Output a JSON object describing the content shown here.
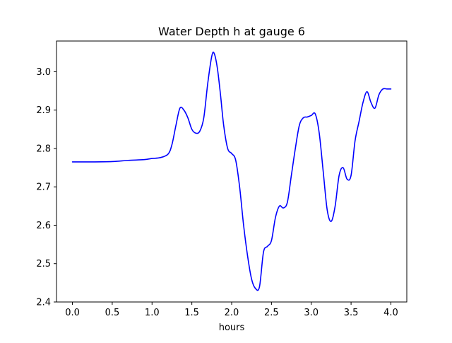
{
  "chart_data": {
    "type": "line",
    "title": "Water Depth h at gauge 6",
    "xlabel": "hours",
    "ylabel": "",
    "xlim": [
      -0.2,
      4.2
    ],
    "ylim": [
      2.4,
      3.08
    ],
    "xticks": [
      0.0,
      0.5,
      1.0,
      1.5,
      2.0,
      2.5,
      3.0,
      3.5,
      4.0
    ],
    "xtick_labels": [
      "0.0",
      "0.5",
      "1.0",
      "1.5",
      "2.0",
      "2.5",
      "3.0",
      "3.5",
      "4.0"
    ],
    "yticks": [
      2.4,
      2.5,
      2.6,
      2.7,
      2.8,
      2.9,
      3.0
    ],
    "ytick_labels": [
      "2.4",
      "2.5",
      "2.6",
      "2.7",
      "2.8",
      "2.9",
      "3.0"
    ],
    "grid": false,
    "colors": {
      "line": "#0000ff",
      "axes": "#000000",
      "background": "#ffffff"
    },
    "series": [
      {
        "x": [
          0.0,
          0.2,
          0.5,
          0.7,
          0.9,
          1.0,
          1.1,
          1.2,
          1.25,
          1.3,
          1.35,
          1.4,
          1.45,
          1.5,
          1.55,
          1.6,
          1.65,
          1.7,
          1.75,
          1.78,
          1.82,
          1.86,
          1.9,
          1.95,
          2.0,
          2.05,
          2.1,
          2.15,
          2.2,
          2.25,
          2.3,
          2.35,
          2.4,
          2.45,
          2.5,
          2.55,
          2.6,
          2.65,
          2.7,
          2.75,
          2.8,
          2.85,
          2.9,
          2.95,
          3.0,
          3.05,
          3.1,
          3.15,
          3.2,
          3.25,
          3.3,
          3.35,
          3.4,
          3.45,
          3.5,
          3.55,
          3.6,
          3.65,
          3.7,
          3.75,
          3.8,
          3.85,
          3.9,
          3.95,
          4.0
        ],
        "y": [
          2.765,
          2.765,
          2.766,
          2.769,
          2.771,
          2.774,
          2.776,
          2.785,
          2.81,
          2.86,
          2.905,
          2.9,
          2.88,
          2.85,
          2.84,
          2.845,
          2.88,
          2.97,
          3.04,
          3.048,
          3.01,
          2.94,
          2.86,
          2.8,
          2.787,
          2.77,
          2.7,
          2.6,
          2.52,
          2.46,
          2.435,
          2.44,
          2.53,
          2.545,
          2.56,
          2.62,
          2.65,
          2.645,
          2.66,
          2.73,
          2.8,
          2.86,
          2.88,
          2.882,
          2.886,
          2.89,
          2.84,
          2.74,
          2.64,
          2.61,
          2.65,
          2.73,
          2.75,
          2.72,
          2.73,
          2.82,
          2.87,
          2.92,
          2.948,
          2.92,
          2.905,
          2.94,
          2.955,
          2.955,
          2.955
        ]
      }
    ]
  }
}
